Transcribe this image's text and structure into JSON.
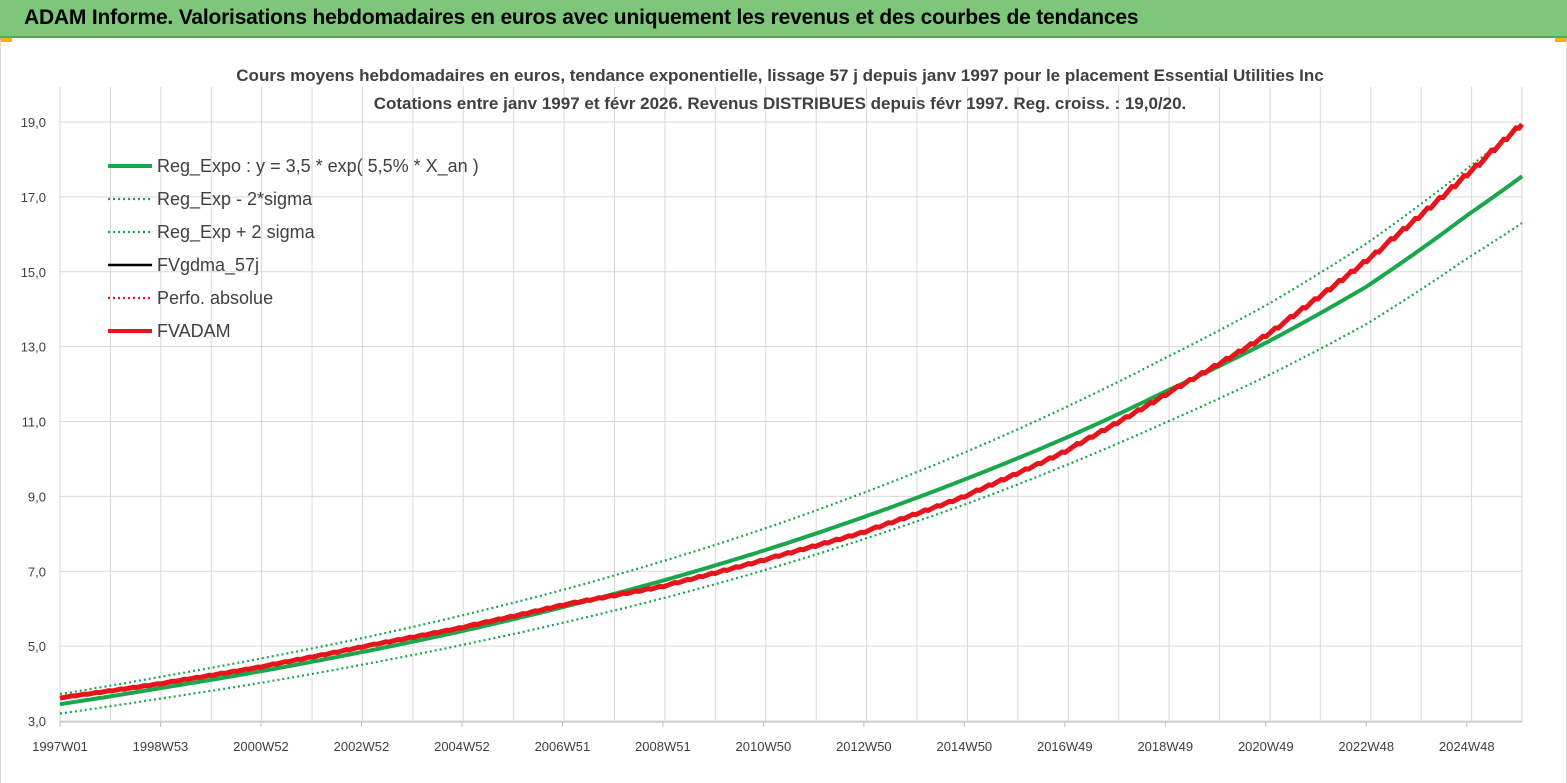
{
  "header": {
    "title": "ADAM Informe. Valorisations hebdomadaires en euros avec uniquement les revenus et des courbes de tendances"
  },
  "colors": {
    "header_bg": "#7dc67a",
    "reg_green": "#1aa64a",
    "fvadam_red": "#e8141c",
    "fvgdma_black": "#000000",
    "perfo_red": "#e8141c",
    "grid": "#d9d9d9"
  },
  "chart_data": {
    "type": "line",
    "title_line1": "Cours moyens hebdomadaires en euros, tendance exponentielle, lissage 57 j depuis janv 1997 pour le placement Essential Utilities Inc",
    "title_line2": "Cotations entre janv 1997 et févr 2026. Revenus DISTRIBUES depuis févr 1997. Reg. croiss. : 19,0/20.",
    "ylim": [
      3.0,
      19.0
    ],
    "y_ticks": [
      "3,0",
      "5,0",
      "7,0",
      "9,0",
      "11,0",
      "13,0",
      "15,0",
      "17,0",
      "19,0"
    ],
    "x_ticks": [
      "1997W01",
      "1998W53",
      "2000W52",
      "2002W52",
      "2004W52",
      "2006W51",
      "2008W51",
      "2010W50",
      "2012W50",
      "2014W50",
      "2016W49",
      "2018W49",
      "2020W49",
      "2022W48",
      "2024W48"
    ],
    "x_range_years": [
      1997.0,
      2026.1
    ],
    "grid": true,
    "legend_position": "top-left",
    "series": [
      {
        "name": "Reg_Expo : y = 3,5 * exp( 5,5% *  X_an )",
        "style": "solid-thick",
        "color": "#1aa64a",
        "x": [
          1997,
          1999,
          2001,
          2003,
          2005,
          2007,
          2009,
          2011,
          2013,
          2015,
          2017,
          2019,
          2021,
          2023,
          2025,
          2026.1
        ],
        "values": [
          3.45,
          3.88,
          4.33,
          4.84,
          5.4,
          6.04,
          6.75,
          7.55,
          8.45,
          9.45,
          10.55,
          11.8,
          13.1,
          14.6,
          16.5,
          17.55
        ]
      },
      {
        "name": "Reg_Exp - 2*sigma",
        "style": "dotted",
        "color": "#1aa64a",
        "x": [
          1997,
          1999,
          2001,
          2003,
          2005,
          2007,
          2009,
          2011,
          2013,
          2015,
          2017,
          2019,
          2021,
          2023,
          2025,
          2026.1
        ],
        "values": [
          3.2,
          3.6,
          4.02,
          4.5,
          5.03,
          5.62,
          6.28,
          7.02,
          7.86,
          8.78,
          9.82,
          10.97,
          12.2,
          13.6,
          15.35,
          16.3
        ]
      },
      {
        "name": "Reg_Exp + 2 sigma",
        "style": "dotted",
        "color": "#1aa64a",
        "x": [
          1997,
          1999,
          2001,
          2003,
          2005,
          2007,
          2009,
          2011,
          2013,
          2015,
          2017,
          2019,
          2021,
          2023,
          2025,
          2026.1
        ],
        "values": [
          3.72,
          4.18,
          4.67,
          5.21,
          5.82,
          6.5,
          7.27,
          8.13,
          9.1,
          10.17,
          11.37,
          12.7,
          14.1,
          15.75,
          17.75,
          18.9
        ]
      },
      {
        "name": "FVgdma_57j",
        "style": "solid",
        "color": "#000000",
        "x": [
          1997,
          1999,
          2001,
          2003,
          2005,
          2007,
          2009,
          2011,
          2013,
          2015,
          2017,
          2019,
          2021,
          2023,
          2025,
          2026.1
        ],
        "values": [
          3.62,
          4.0,
          4.45,
          4.98,
          5.5,
          6.1,
          6.6,
          7.3,
          8.05,
          9.0,
          10.2,
          11.72,
          13.3,
          15.3,
          17.6,
          18.95
        ]
      },
      {
        "name": "Perfo. absolue",
        "style": "dotted",
        "color": "#e8141c",
        "x": [
          1997,
          1999,
          2001,
          2003,
          2005,
          2007,
          2009,
          2011,
          2013,
          2015,
          2017,
          2019,
          2021,
          2023,
          2025,
          2026.1
        ],
        "values": [
          3.62,
          4.0,
          4.45,
          4.98,
          5.5,
          6.1,
          6.6,
          7.3,
          8.05,
          9.0,
          10.2,
          11.72,
          13.3,
          15.3,
          17.6,
          18.95
        ]
      },
      {
        "name": "FVADAM",
        "style": "solid-thick",
        "color": "#e8141c",
        "x": [
          1997,
          1999,
          2001,
          2003,
          2005,
          2007,
          2009,
          2011,
          2013,
          2015,
          2017,
          2019,
          2021,
          2023,
          2025,
          2026.1
        ],
        "values": [
          3.62,
          4.0,
          4.45,
          4.98,
          5.5,
          6.1,
          6.6,
          7.3,
          8.05,
          9.0,
          10.2,
          11.72,
          13.3,
          15.3,
          17.6,
          18.95
        ]
      }
    ]
  }
}
